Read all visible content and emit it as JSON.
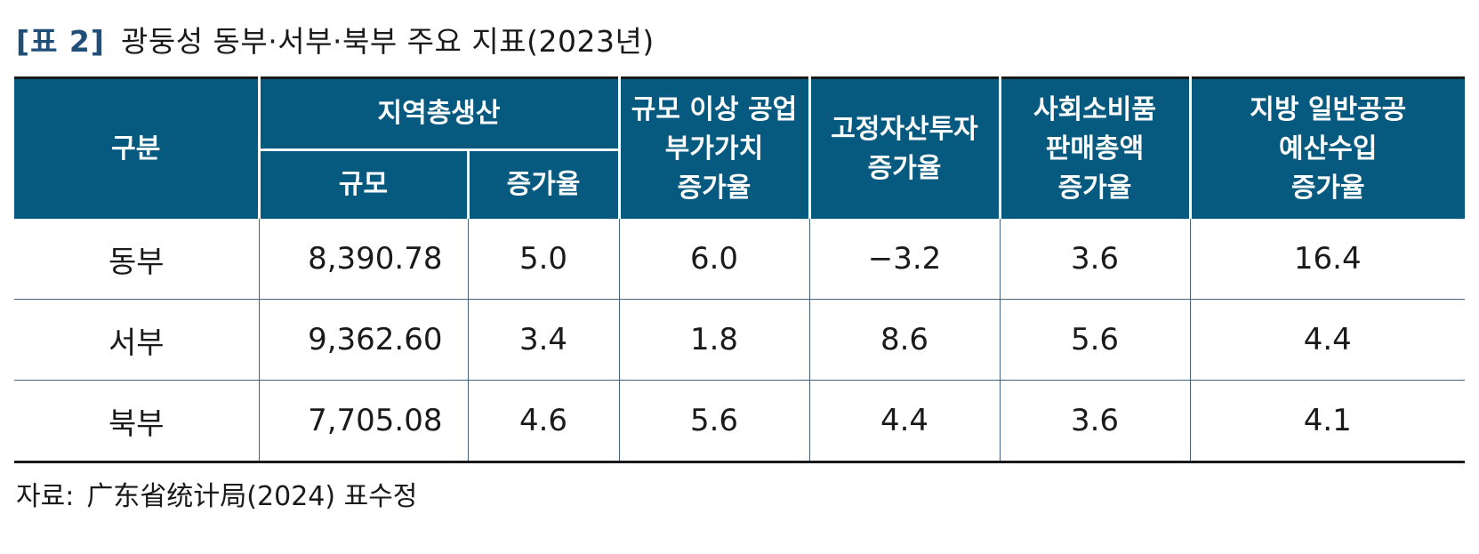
{
  "title": {
    "tag": "[표 2]",
    "text": "광둥성 동부·서부·북부 주요 지표(2023년)"
  },
  "table": {
    "headers": {
      "category": "구분",
      "grdp_group": "지역총생산",
      "grdp_size": "규모",
      "grdp_growth": "증가율",
      "industry_line1": "규모 이상 공업",
      "industry_line2": "부가가치",
      "industry_line3": "증가율",
      "investment_line1": "고정자산투자",
      "investment_line2": "증가율",
      "retail_line1": "사회소비품",
      "retail_line2": "판매총액",
      "retail_line3": "증가율",
      "budget_line1": "지방 일반공공",
      "budget_line2": "예산수입",
      "budget_line3": "증가율"
    },
    "rows": [
      {
        "region": "동부",
        "grdp_size": "8,390.78",
        "grdp_growth": "5.0",
        "industry_growth": "6.0",
        "investment_growth": "−3.2",
        "retail_growth": "3.6",
        "budget_growth": "16.4"
      },
      {
        "region": "서부",
        "grdp_size": "9,362.60",
        "grdp_growth": "3.4",
        "industry_growth": "1.8",
        "investment_growth": "8.6",
        "retail_growth": "5.6",
        "budget_growth": "4.4"
      },
      {
        "region": "북부",
        "grdp_size": "7,705.08",
        "grdp_growth": "4.6",
        "industry_growth": "5.6",
        "investment_growth": "4.4",
        "retail_growth": "3.6",
        "budget_growth": "4.1"
      }
    ]
  },
  "source": {
    "label": "자료:",
    "text": "广东省统计局(2024) 표수정"
  },
  "colors": {
    "header_background": "#06597f",
    "header_text": "#ffffff",
    "title_tag": "#1f4e79",
    "grid_line": "#46627a"
  }
}
